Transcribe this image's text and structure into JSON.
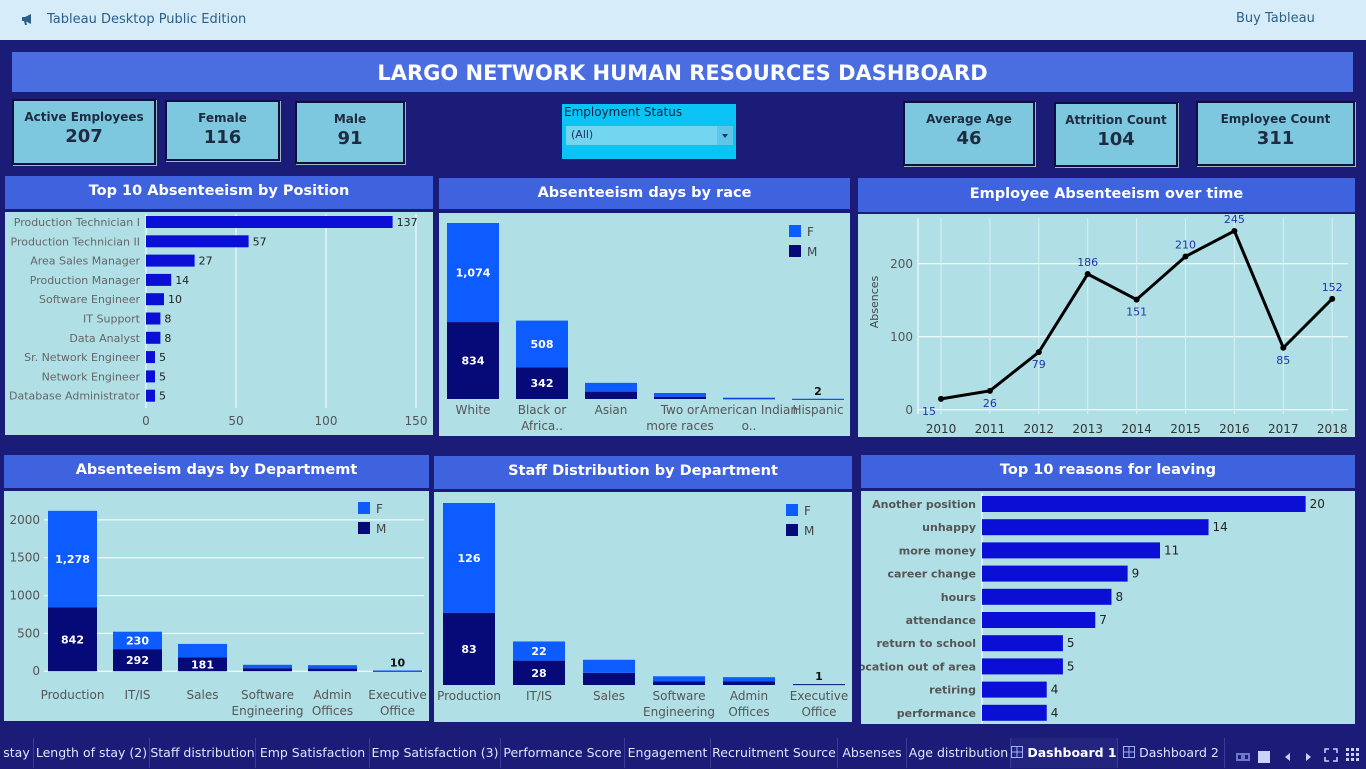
{
  "topbar": {
    "app_title": "Tableau Desktop Public Edition",
    "buy_label": "Buy Tableau"
  },
  "dashboard_title": "LARGO NETWORK HUMAN RESOURCES DASHBOARD",
  "kpis": {
    "active": {
      "label": "Active Employees",
      "value": "207"
    },
    "female": {
      "label": "Female",
      "value": "116"
    },
    "male": {
      "label": "Male",
      "value": "91"
    },
    "avg_age": {
      "label": "Average Age",
      "value": "46"
    },
    "attrition": {
      "label": "Attrition Count",
      "value": "104"
    },
    "emp_count": {
      "label": "Employee Count",
      "value": "311"
    }
  },
  "filter": {
    "label": "Employment Status",
    "value": "(All)"
  },
  "colors": {
    "female": "#0d5cff",
    "male": "#060a78",
    "bar": "#0b0fd6",
    "panel_bg": "#b0e0e6",
    "title_bg": "#3f63df"
  },
  "chart_data": [
    {
      "id": "absent_position",
      "type": "bar",
      "orientation": "horizontal",
      "title": "Top 10 Absenteeism by Position",
      "categories": [
        "Production Technician I",
        "Production Technician II",
        "Area Sales Manager",
        "Production Manager",
        "Software Engineer",
        "IT Support",
        "Data Analyst",
        "Sr. Network Engineer",
        "Network Engineer",
        "Database Administrator"
      ],
      "values": [
        137,
        57,
        27,
        14,
        10,
        8,
        8,
        5,
        5,
        5
      ],
      "xticks": [
        "0",
        "50",
        "100",
        "150"
      ],
      "xlim": [
        0,
        150
      ]
    },
    {
      "id": "absent_race",
      "type": "bar",
      "stacked": true,
      "title": "Absenteeism days by race",
      "categories": [
        "White",
        "Black or Africa..",
        "Asian",
        "Two or more races",
        "American Indian o..",
        "Hispanic"
      ],
      "series": [
        {
          "name": "M",
          "values": [
            834,
            342,
            80,
            25,
            8,
            1
          ]
        },
        {
          "name": "F",
          "values": [
            1074,
            508,
            95,
            40,
            6,
            1
          ]
        }
      ],
      "labels": {
        "M": [
          "834",
          "342",
          "",
          "",
          "",
          ""
        ],
        "F": [
          "1,074",
          "508",
          "",
          "",
          "",
          ""
        ],
        "total": [
          "",
          "",
          "",
          "",
          "",
          "2"
        ]
      },
      "ylim": [
        0,
        1908
      ]
    },
    {
      "id": "absent_time",
      "type": "line",
      "title": "Employee Absenteeism over time",
      "ylabel": "Absences",
      "x": [
        "2010",
        "2011",
        "2012",
        "2013",
        "2014",
        "2015",
        "2016",
        "2017",
        "2018"
      ],
      "values": [
        15,
        26,
        79,
        186,
        151,
        210,
        245,
        85,
        152
      ],
      "yticks": [
        "0",
        "100",
        "200"
      ],
      "ylim": [
        -3,
        260
      ]
    },
    {
      "id": "absent_dept",
      "type": "bar",
      "stacked": true,
      "title": "Absenteeism days by Departmemt",
      "categories": [
        "Production",
        "IT/IS",
        "Sales",
        "Software Engineering",
        "Admin Offices",
        "Executive Office"
      ],
      "series": [
        {
          "name": "M",
          "values": [
            842,
            292,
            181,
            40,
            35,
            5
          ]
        },
        {
          "name": "F",
          "values": [
            1278,
            230,
            180,
            45,
            45,
            5
          ]
        }
      ],
      "labels": {
        "M": [
          "842",
          "292",
          "181",
          "",
          "",
          ""
        ],
        "F": [
          "1,278",
          "230",
          "",
          "",
          "",
          ""
        ],
        "total": [
          "",
          "",
          "",
          "",
          "",
          "10"
        ]
      },
      "yticks": [
        "0",
        "500",
        "1000",
        "1500",
        "2000"
      ],
      "ylim": [
        -50,
        2250
      ]
    },
    {
      "id": "staff_dept",
      "type": "bar",
      "stacked": true,
      "title": "Staff Distribution by Department",
      "categories": [
        "Production",
        "IT/IS",
        "Sales",
        "Software Engineering",
        "Admin Offices",
        "Executive Office"
      ],
      "series": [
        {
          "name": "M",
          "values": [
            83,
            28,
            14,
            4,
            4,
            1
          ]
        },
        {
          "name": "F",
          "values": [
            126,
            22,
            15,
            6,
            5,
            0
          ]
        }
      ],
      "labels": {
        "M": [
          "83",
          "28",
          "",
          "",
          "",
          ""
        ],
        "F": [
          "126",
          "22",
          "",
          "",
          "",
          ""
        ],
        "total": [
          "",
          "",
          "",
          "",
          "",
          "1"
        ]
      },
      "ylim": [
        0,
        209
      ]
    },
    {
      "id": "leave_reasons",
      "type": "bar",
      "orientation": "horizontal",
      "title": "Top 10 reasons for leaving",
      "categories": [
        "Another position",
        "unhappy",
        "more money",
        "career change",
        "hours",
        "attendance",
        "return to school",
        "relocation out of area",
        "retiring",
        "performance"
      ],
      "values": [
        20,
        14,
        11,
        9,
        8,
        7,
        5,
        5,
        4,
        4
      ],
      "xlim": [
        0,
        22
      ]
    }
  ],
  "legend": {
    "f": "F",
    "m": "M"
  },
  "tabs": [
    {
      "label": "stay"
    },
    {
      "label": "Length of stay (2)"
    },
    {
      "label": "Staff distribution"
    },
    {
      "label": "Emp Satisfaction"
    },
    {
      "label": "Emp Satisfaction (3)"
    },
    {
      "label": "Performance Score"
    },
    {
      "label": "Engagement"
    },
    {
      "label": "Recruitment Source"
    },
    {
      "label": "Absenses"
    },
    {
      "label": "Age distribution"
    },
    {
      "label": "Dashboard 1",
      "active": true
    },
    {
      "label": "Dashboard 2"
    }
  ]
}
